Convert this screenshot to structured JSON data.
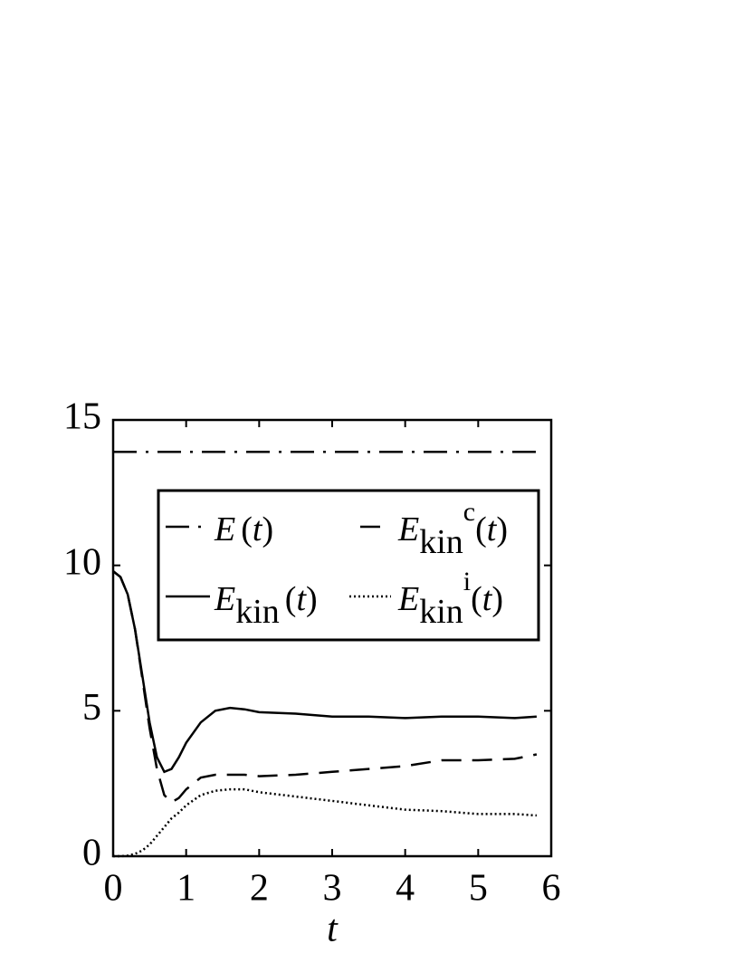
{
  "chart_data": {
    "type": "line",
    "xlabel": "t",
    "xlim": [
      0,
      6
    ],
    "ylim": [
      0,
      15
    ],
    "xticks": [
      0,
      1,
      2,
      3,
      4,
      5,
      6
    ],
    "yticks": [
      0,
      5,
      10,
      15
    ],
    "series": [
      {
        "name": {
          "main": "E",
          "arg": "(t)"
        },
        "color": "#000000",
        "dash": "dashdot",
        "x": [
          0,
          5.8
        ],
        "values": [
          13.9,
          13.9
        ]
      },
      {
        "name": {
          "main": "E",
          "sub": "kin",
          "sup": "c",
          "arg": "(t)"
        },
        "color": "#000000",
        "dash": "dashed",
        "x": [
          0,
          0.1,
          0.2,
          0.3,
          0.4,
          0.5,
          0.6,
          0.7,
          0.8,
          0.9,
          1.0,
          1.2,
          1.4,
          1.6,
          1.8,
          2.0,
          2.5,
          3.0,
          3.5,
          4.0,
          4.5,
          5.0,
          5.5,
          5.8
        ],
        "values": [
          9.8,
          9.6,
          9.0,
          7.8,
          6.1,
          4.4,
          3.0,
          2.1,
          1.85,
          2.0,
          2.3,
          2.7,
          2.8,
          2.8,
          2.8,
          2.75,
          2.8,
          2.9,
          3.0,
          3.1,
          3.3,
          3.3,
          3.35,
          3.5
        ]
      },
      {
        "name": {
          "main": "E",
          "sub": "kin",
          "arg": "(t)"
        },
        "color": "#000000",
        "dash": "solid",
        "x": [
          0,
          0.1,
          0.2,
          0.3,
          0.4,
          0.5,
          0.6,
          0.7,
          0.8,
          0.9,
          1.0,
          1.2,
          1.4,
          1.6,
          1.8,
          2.0,
          2.5,
          3.0,
          3.5,
          4.0,
          4.5,
          5.0,
          5.5,
          5.8
        ],
        "values": [
          9.8,
          9.6,
          9.0,
          7.8,
          6.2,
          4.6,
          3.4,
          2.9,
          3.0,
          3.4,
          3.9,
          4.6,
          5.0,
          5.1,
          5.05,
          4.95,
          4.9,
          4.8,
          4.8,
          4.75,
          4.8,
          4.8,
          4.75,
          4.8
        ]
      },
      {
        "name": {
          "main": "E",
          "sub": "kin",
          "sup": "i",
          "arg": "(t)"
        },
        "color": "#000000",
        "dash": "dotted",
        "x": [
          0,
          0.1,
          0.2,
          0.3,
          0.4,
          0.5,
          0.6,
          0.7,
          0.8,
          0.9,
          1.0,
          1.2,
          1.4,
          1.6,
          1.8,
          2.0,
          2.5,
          3.0,
          3.5,
          4.0,
          4.5,
          5.0,
          5.5,
          5.8
        ],
        "values": [
          0,
          0,
          0.02,
          0.08,
          0.2,
          0.4,
          0.7,
          1.0,
          1.3,
          1.5,
          1.75,
          2.1,
          2.25,
          2.3,
          2.3,
          2.2,
          2.05,
          1.9,
          1.75,
          1.6,
          1.55,
          1.45,
          1.45,
          1.4
        ]
      }
    ]
  }
}
